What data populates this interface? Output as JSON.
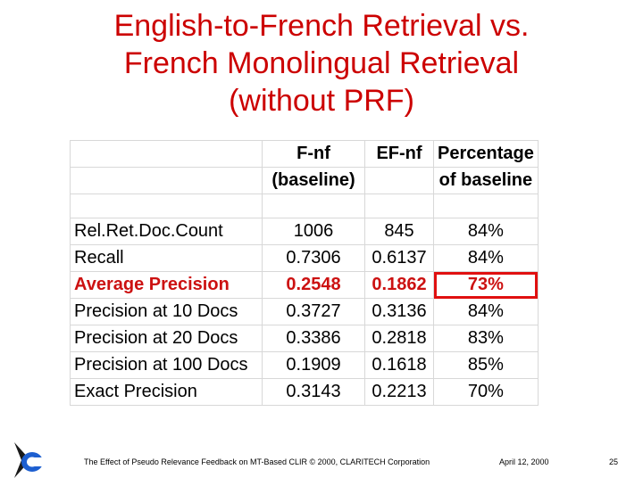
{
  "title": {
    "line1": "English-to-French Retrieval vs.",
    "line2": "French Monolingual Retrieval",
    "line3": "(without PRF)"
  },
  "table": {
    "header": {
      "row1": [
        "",
        "F-nf",
        "EF-nf",
        "Percentage"
      ],
      "row2": [
        "",
        "(baseline)",
        "",
        "of baseline"
      ]
    },
    "rows": [
      [
        "Rel.Ret.Doc.Count",
        "1006",
        "845",
        "84%"
      ],
      [
        "Recall",
        "0.7306",
        "0.6137",
        "84%"
      ],
      [
        "Average Precision",
        "0.2548",
        "0.1862",
        "73%"
      ],
      [
        "Precision at 10 Docs",
        "0.3727",
        "0.3136",
        "84%"
      ],
      [
        "Precision at 20 Docs",
        "0.3386",
        "0.2818",
        "83%"
      ],
      [
        "Precision at 100 Docs",
        "0.1909",
        "0.1618",
        "85%"
      ],
      [
        "Exact Precision",
        "0.3143",
        "0.2213",
        "70%"
      ]
    ],
    "highlight_row": "Average Precision",
    "highlight_color": "#cc1111"
  },
  "footer": {
    "left": "The Effect of Pseudo Relevance Feedback on MT-Based CLIR © 2000, CLARITECH Corporation",
    "date": "April 12, 2000",
    "page": "25"
  },
  "logo_icon": "claritech-logo-icon"
}
